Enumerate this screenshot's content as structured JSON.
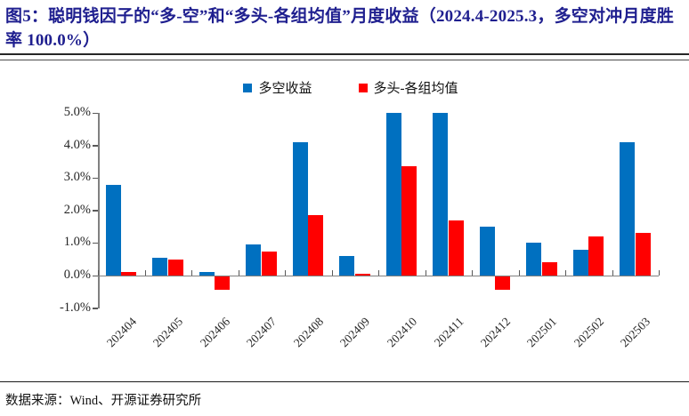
{
  "figure": {
    "title": "图5：聪明钱因子的“多-空”和“多头-各组均值”月度收益（2024.4-2025.3，多空对冲月度胜率 100.0%）",
    "source": "数据来源：Wind、开源证券研究所"
  },
  "colors": {
    "title": "#1F1F8F",
    "blue_series": "#0070C0",
    "red_series": "#FF0000",
    "axis_line": "#808080"
  },
  "chart_data": {
    "type": "bar",
    "title": "",
    "categories": [
      "202404",
      "202405",
      "202406",
      "202407",
      "202408",
      "202409",
      "202410",
      "202411",
      "202412",
      "202501",
      "202502",
      "202503"
    ],
    "series": [
      {
        "name": "多空收益",
        "color": "#0070C0",
        "values": [
          2.8,
          0.55,
          0.1,
          0.95,
          4.1,
          0.6,
          5.0,
          5.0,
          1.5,
          1.0,
          0.8,
          4.1
        ]
      },
      {
        "name": "多头-各组均值",
        "color": "#FF0000",
        "values": [
          0.1,
          0.5,
          -0.4,
          0.75,
          1.85,
          0.05,
          3.35,
          1.7,
          -0.4,
          0.4,
          1.2,
          1.3
        ]
      }
    ],
    "xlabel": "",
    "ylabel": "",
    "ylim": [
      -1,
      5
    ],
    "y_ticks": [
      {
        "label": "5.0%",
        "v": 5
      },
      {
        "label": "4.0%",
        "v": 4
      },
      {
        "label": "3.0%",
        "v": 3
      },
      {
        "label": "2.0%",
        "v": 2
      },
      {
        "label": "1.0%",
        "v": 1
      },
      {
        "label": "0.0%",
        "v": 0
      },
      {
        "label": "-1.0%",
        "v": -1
      }
    ],
    "grid": false,
    "legend_position": "top",
    "bar_clip_max": 5.0
  }
}
